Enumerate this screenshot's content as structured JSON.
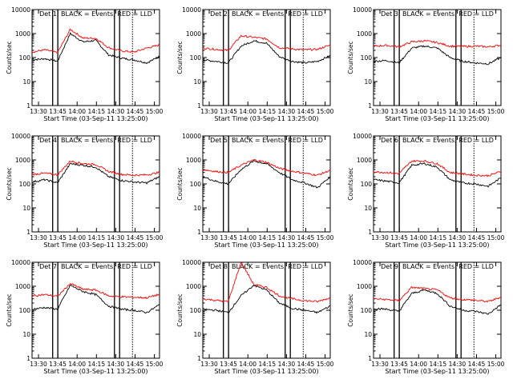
{
  "chart_data": {
    "type": "line",
    "xlabel": "Start Time (03-Sep-11 13:25:00)",
    "ylabel": "Counts/sec",
    "y_scale": "log",
    "ylim": [
      1,
      10000
    ],
    "y_ticks": [
      1,
      10,
      100,
      1000,
      10000
    ],
    "y_tick_labels": [
      "1",
      "10",
      "100",
      "1000",
      "10000"
    ],
    "x_range": [
      "13:25",
      "15:04"
    ],
    "x_ticks": [
      "13:30",
      "13:45",
      "14:00",
      "14:15",
      "14:30",
      "14:45",
      "15:00"
    ],
    "series_colors": {
      "events": "#000000",
      "lld": "#ff0000"
    },
    "panels": [
      {
        "title": "Det 1",
        "legend": "BLACK = Events, RED = LLD",
        "markers_solid": [
          "13:41",
          "13:45",
          "14:29",
          "14:33"
        ],
        "markers_dashed": [
          "14:43"
        ],
        "events": [
          80,
          90,
          70,
          1000,
          450,
          520,
          130,
          95,
          80,
          60,
          110
        ],
        "lld": [
          170,
          210,
          160,
          1500,
          650,
          640,
          260,
          190,
          170,
          250,
          330
        ]
      },
      {
        "title": "Det 2",
        "legend": "BLACK = Events, RED = LLD",
        "markers_solid": [
          "13:41",
          "13:45",
          "14:29",
          "14:33"
        ],
        "markers_dashed": [
          "14:43"
        ],
        "events": [
          80,
          70,
          60,
          300,
          500,
          400,
          110,
          70,
          60,
          70,
          120
        ],
        "lld": [
          250,
          220,
          200,
          800,
          700,
          600,
          260,
          230,
          210,
          220,
          330
        ]
      },
      {
        "title": "Det 3",
        "legend": "BLACK = Events, RED = LLD",
        "markers_solid": [
          "13:41",
          "13:45",
          "14:29",
          "14:33"
        ],
        "markers_dashed": [
          "14:43"
        ],
        "events": [
          70,
          75,
          60,
          250,
          300,
          250,
          100,
          70,
          60,
          55,
          100
        ],
        "lld": [
          300,
          320,
          280,
          450,
          500,
          420,
          300,
          290,
          300,
          280,
          330
        ]
      },
      {
        "title": "Det 4",
        "legend": "BLACK = Events, RED = LLD",
        "markers_solid": [
          "13:41",
          "13:45",
          "14:29",
          "14:33"
        ],
        "markers_dashed": [
          "14:43"
        ],
        "events": [
          120,
          150,
          110,
          700,
          600,
          500,
          200,
          140,
          120,
          110,
          200
        ],
        "lld": [
          250,
          280,
          240,
          900,
          700,
          650,
          330,
          250,
          230,
          240,
          300
        ]
      },
      {
        "title": "Det 5",
        "legend": "BLACK = Events, RED = LLD",
        "markers_solid": [
          "13:41",
          "13:45",
          "14:29",
          "14:33"
        ],
        "markers_dashed": [
          "14:43"
        ],
        "events": [
          200,
          130,
          100,
          400,
          900,
          700,
          300,
          150,
          110,
          70,
          200
        ],
        "lld": [
          400,
          330,
          300,
          600,
          1000,
          800,
          450,
          340,
          280,
          230,
          370
        ]
      },
      {
        "title": "Det 6",
        "legend": "BLACK = Events, RED = LLD",
        "markers_solid": [
          "13:41",
          "13:45",
          "14:29",
          "14:33"
        ],
        "markers_dashed": [
          "14:43"
        ],
        "events": [
          150,
          130,
          110,
          600,
          700,
          500,
          150,
          110,
          100,
          80,
          180
        ],
        "lld": [
          320,
          300,
          270,
          900,
          900,
          700,
          300,
          260,
          230,
          220,
          330
        ]
      },
      {
        "title": "Det 7",
        "legend": "BLACK = Events, RED = LLD",
        "markers_solid": [
          "13:41",
          "13:45",
          "14:29",
          "14:33"
        ],
        "markers_dashed": [
          "14:43"
        ],
        "events": [
          110,
          130,
          110,
          1100,
          600,
          450,
          150,
          110,
          100,
          80,
          170
        ],
        "lld": [
          400,
          450,
          380,
          1300,
          750,
          700,
          400,
          360,
          350,
          330,
          460
        ]
      },
      {
        "title": "Det 8",
        "legend": "BLACK = Events, RED = LLD",
        "markers_solid": [
          "13:41",
          "13:45",
          "14:29",
          "14:33"
        ],
        "markers_dashed": [
          "14:43"
        ],
        "events": [
          110,
          100,
          80,
          400,
          1100,
          700,
          200,
          120,
          100,
          80,
          150
        ],
        "lld": [
          300,
          260,
          230,
          10000,
          1200,
          900,
          400,
          300,
          250,
          230,
          330
        ]
      },
      {
        "title": "Det 9",
        "legend": "BLACK = Events, RED = LLD",
        "markers_solid": [
          "13:41",
          "13:45",
          "14:29",
          "14:33"
        ],
        "markers_dashed": [
          "14:43"
        ],
        "events": [
          120,
          110,
          90,
          500,
          700,
          500,
          150,
          100,
          90,
          70,
          170
        ],
        "lld": [
          300,
          280,
          250,
          900,
          800,
          700,
          330,
          280,
          260,
          230,
          350
        ]
      }
    ]
  }
}
